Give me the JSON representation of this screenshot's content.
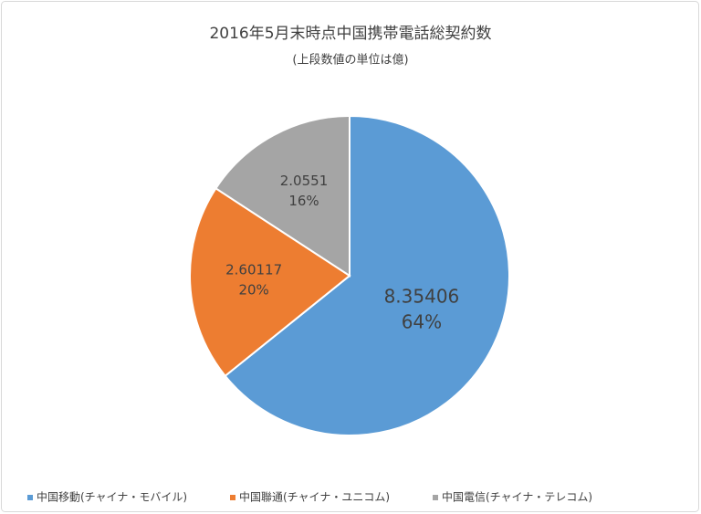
{
  "chart_data": {
    "type": "pie",
    "title": "2016年5月末時点中国携帯電話総契約数",
    "subtitle": "(上段数値の単位は億)",
    "categories": [
      "中国移動(チャイナ・モバイル)",
      "中国聯通(チャイナ・ユニコム)",
      "中国電信(チャイナ・テレコム)"
    ],
    "values": [
      8.35406,
      2.60117,
      2.0551
    ],
    "percent_labels": [
      "64%",
      "20%",
      "16%"
    ],
    "colors": [
      "#5b9bd5",
      "#ed7d31",
      "#a5a5a5"
    ],
    "legend": "bottom"
  }
}
